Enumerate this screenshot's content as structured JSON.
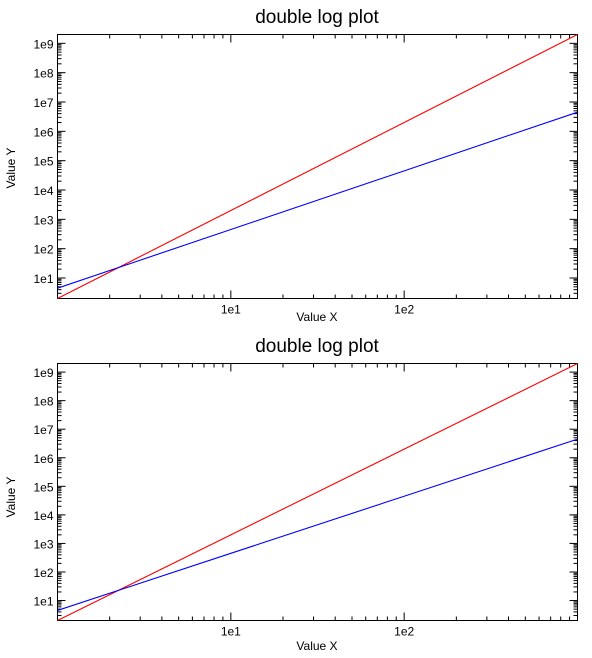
{
  "chart_data": [
    {
      "type": "line",
      "title": "double log plot",
      "xlabel": "Value X",
      "ylabel": "Value Y",
      "xscale": "log",
      "yscale": "log",
      "xlim": [
        1,
        1000
      ],
      "ylim": [
        2,
        2000000000
      ],
      "xticks": [
        10,
        100
      ],
      "xtick_labels": [
        "1e1",
        "1e2"
      ],
      "yticks": [
        10,
        100,
        1000,
        10000,
        100000,
        1000000,
        10000000,
        100000000,
        1000000000
      ],
      "ytick_labels": [
        "1e1",
        "1e2",
        "1e3",
        "1e4",
        "1e5",
        "1e6",
        "1e7",
        "1e8",
        "1e9"
      ],
      "grid": false,
      "series": [
        {
          "color": "#ff0000",
          "x": [
            1,
            10,
            100,
            1000
          ],
          "y": [
            2,
            2000,
            2000000,
            2000000000
          ]
        },
        {
          "color": "#0000ff",
          "x": [
            1,
            10,
            100,
            1000
          ],
          "y": [
            4.5,
            450,
            45000,
            4500000
          ]
        }
      ]
    },
    {
      "type": "line",
      "title": "double log plot",
      "xlabel": "Value X",
      "ylabel": "Value Y",
      "xscale": "log",
      "yscale": "log",
      "xlim": [
        1,
        1000
      ],
      "ylim": [
        2,
        2000000000
      ],
      "xticks": [
        10,
        100
      ],
      "xtick_labels": [
        "1e1",
        "1e2"
      ],
      "yticks": [
        10,
        100,
        1000,
        10000,
        100000,
        1000000,
        10000000,
        100000000,
        1000000000
      ],
      "ytick_labels": [
        "1e1",
        "1e2",
        "1e3",
        "1e4",
        "1e5",
        "1e6",
        "1e7",
        "1e8",
        "1e9"
      ],
      "grid": false,
      "series": [
        {
          "color": "#ff0000",
          "x": [
            1,
            10,
            100,
            1000
          ],
          "y": [
            2,
            2000,
            2000000,
            2000000000
          ]
        },
        {
          "color": "#0000ff",
          "x": [
            1,
            10,
            100,
            1000
          ],
          "y": [
            4.5,
            450,
            45000,
            4500000
          ]
        }
      ]
    }
  ]
}
